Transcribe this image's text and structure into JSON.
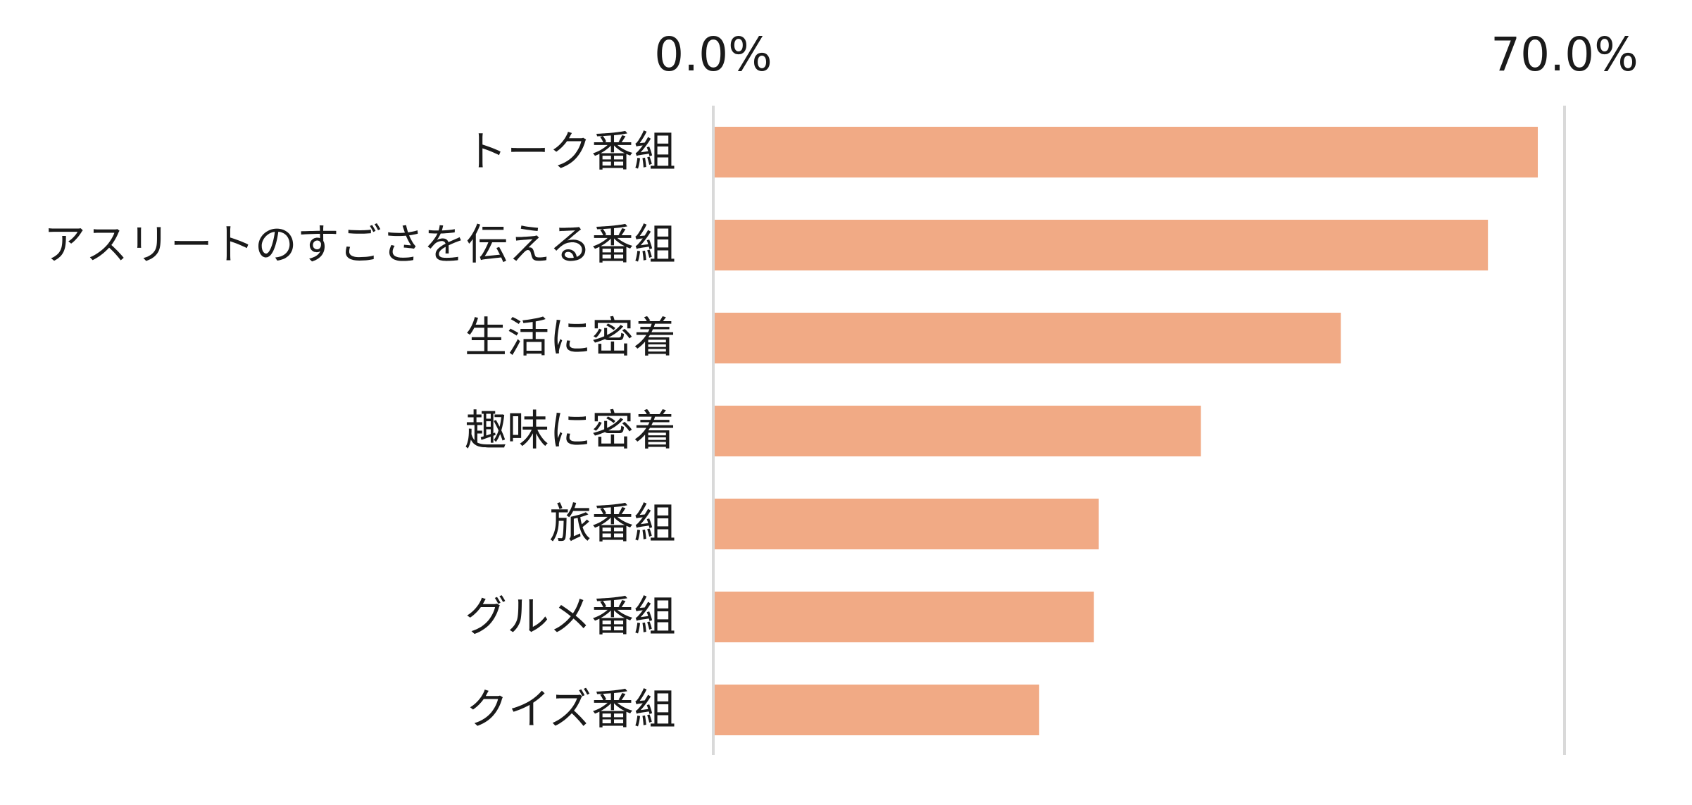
{
  "chart_data": {
    "type": "bar",
    "orientation": "horizontal",
    "categories": [
      "トーク番組",
      "アスリートのすごさを伝える番組",
      "生活に密着",
      "趣味に密着",
      "旅番組",
      "グルメ番組",
      "クイズ番組"
    ],
    "values": [
      67.8,
      63.7,
      51.6,
      40.1,
      31.7,
      31.3,
      26.8
    ],
    "xlim": [
      0,
      70
    ],
    "tick_values": [
      0,
      70
    ],
    "tick_labels": [
      "0.0%",
      "70.0%"
    ],
    "title": "",
    "xlabel": "",
    "ylabel": "",
    "grid": true,
    "legend": "none",
    "colors": {
      "bar": "#F1AA85",
      "grid": "#D9D9D9",
      "text": "#1A1A1A"
    }
  }
}
